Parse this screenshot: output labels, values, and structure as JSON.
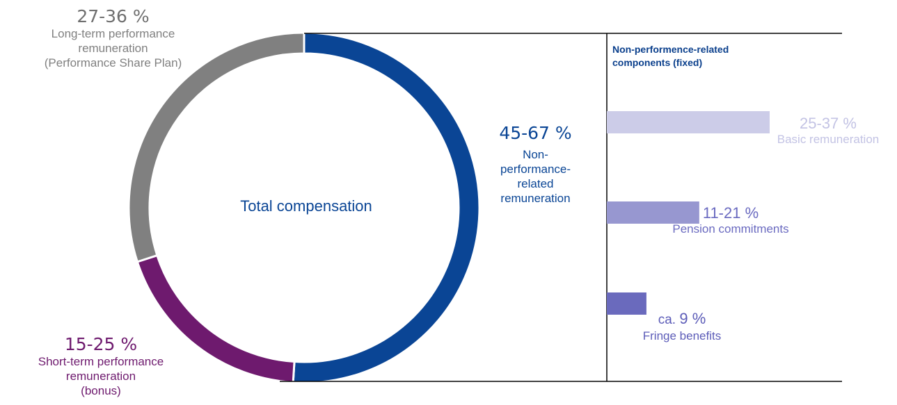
{
  "chart_data": [
    {
      "type": "pie",
      "title": "Total compensation",
      "slices": [
        {
          "key": "nonperf",
          "label": "Non-performance-related remuneration",
          "label_lines": [
            "Non-",
            "performance-",
            "related",
            "remuneration"
          ],
          "value_text": "45-67 %",
          "value": 51,
          "color": "#0a4595"
        },
        {
          "key": "short",
          "label": "Short-term performance remuneration (bonus)",
          "label_lines": [
            "Short-term performance",
            "remuneration",
            "(bonus)"
          ],
          "value_text": "15-25 %",
          "value": 19,
          "color": "#6e1a6e"
        },
        {
          "key": "long",
          "label": "Long-term performance remuneration (Performance Share Plan)",
          "label_lines": [
            "Long-term performance",
            "remuneration",
            "(Performance Share Plan)"
          ],
          "value_text": "27-36 %",
          "value": 30,
          "color": "#808080"
        }
      ]
    },
    {
      "type": "bar",
      "title": "Non-performence-related components (fixed)",
      "title_lines": [
        "Non-performence-related",
        "components (fixed)"
      ],
      "categories": [
        "Basic remuneration",
        "Pension commitments",
        "Fringe benefits"
      ],
      "values": [
        37,
        21,
        9
      ],
      "value_texts": [
        "25-37 %",
        "11-21 %",
        "9 %"
      ],
      "value_prefixes": [
        "",
        "",
        "ca. "
      ],
      "colors": [
        "#cccce8",
        "#9797d0",
        "#6a6abd"
      ],
      "xlim": [
        0,
        37
      ]
    }
  ]
}
